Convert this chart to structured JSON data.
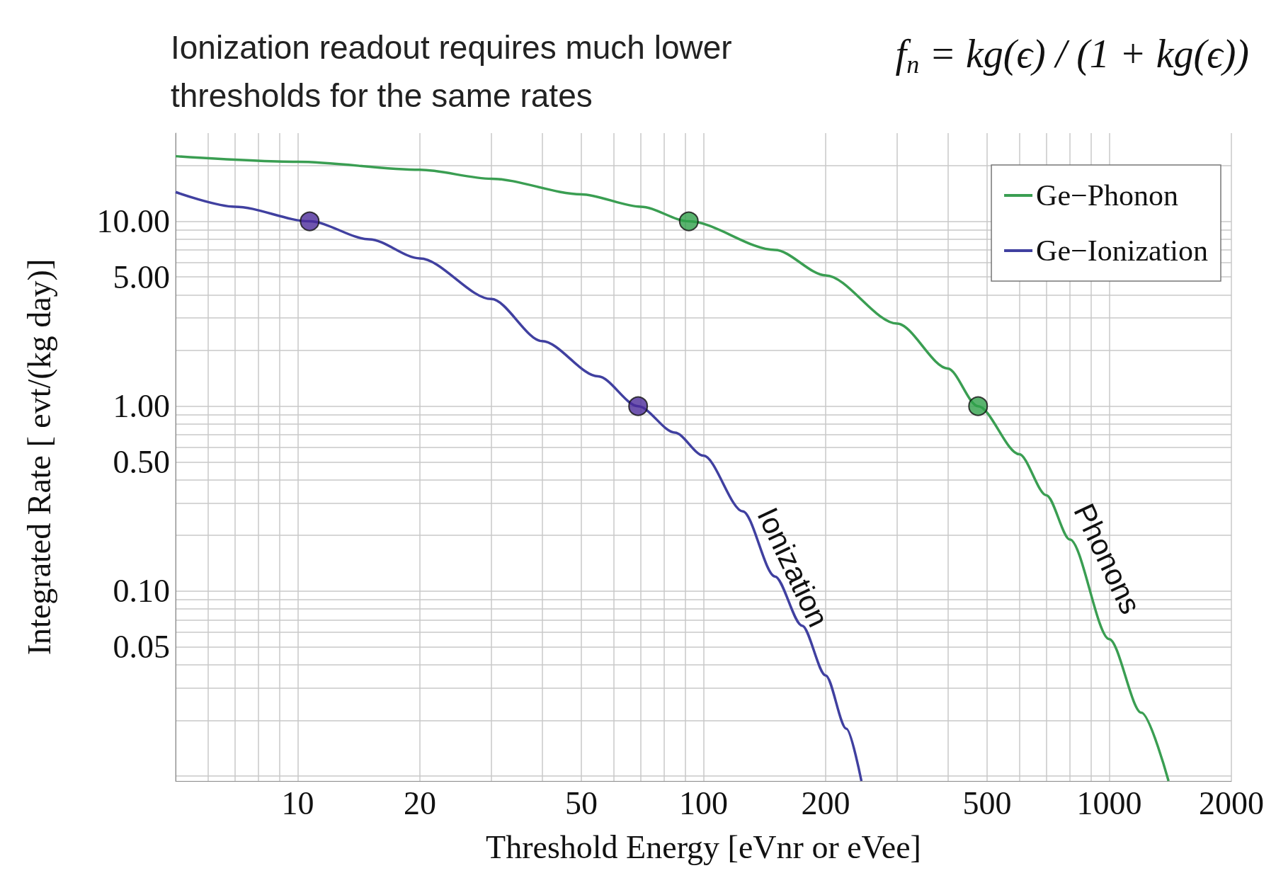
{
  "chart_data": {
    "type": "line",
    "title": "Ionization readout requires much lower thresholds for the same rates",
    "xlabel": "Threshold Energy [eVnr or eVee]",
    "ylabel": "Integrated Rate [ evt/(kg day)]",
    "log": "xy",
    "grid": true,
    "legend": "top right",
    "line_style": "solid",
    "xlim": [
      5,
      2000
    ],
    "ylim": [
      0.0094,
      30
    ],
    "xticks": [
      {
        "value": 5,
        "label": null
      },
      {
        "value": 6,
        "label": null
      },
      {
        "value": 7,
        "label": null
      },
      {
        "value": 8,
        "label": null
      },
      {
        "value": 9,
        "label": null
      },
      10,
      20,
      {
        "value": 30,
        "label": null
      },
      {
        "value": 40,
        "label": null
      },
      50,
      {
        "value": 60,
        "label": null
      },
      {
        "value": 70,
        "label": null
      },
      {
        "value": 80,
        "label": null
      },
      {
        "value": 90,
        "label": null
      },
      100,
      200,
      {
        "value": 300,
        "label": null
      },
      {
        "value": 400,
        "label": null
      },
      500,
      {
        "value": 600,
        "label": null
      },
      {
        "value": 700,
        "label": null
      },
      {
        "value": 800,
        "label": null
      },
      {
        "value": 900,
        "label": null
      },
      1000,
      2000
    ],
    "yticks": [
      {
        "value": 0.01,
        "label": null
      },
      {
        "value": 0.02,
        "label": null
      },
      {
        "value": 0.03,
        "label": null
      },
      {
        "value": 0.04,
        "label": null
      },
      {
        "value": 0.05,
        "label": "0.05"
      },
      {
        "value": 0.06,
        "label": null
      },
      {
        "value": 0.07,
        "label": null
      },
      {
        "value": 0.08,
        "label": null
      },
      {
        "value": 0.09,
        "label": null
      },
      {
        "value": 0.1,
        "label": "0.10"
      },
      {
        "value": 0.2,
        "label": null
      },
      {
        "value": 0.3,
        "label": null
      },
      {
        "value": 0.4,
        "label": null
      },
      {
        "value": 0.5,
        "label": "0.50"
      },
      {
        "value": 0.6,
        "label": null
      },
      {
        "value": 0.7,
        "label": null
      },
      {
        "value": 0.8,
        "label": null
      },
      {
        "value": 0.9,
        "label": null
      },
      {
        "value": 1,
        "label": "1.00"
      },
      {
        "value": 2,
        "label": null
      },
      {
        "value": 3,
        "label": null
      },
      {
        "value": 4,
        "label": null
      },
      {
        "value": 5,
        "label": "5.00"
      },
      {
        "value": 6,
        "label": null
      },
      {
        "value": 7,
        "label": null
      },
      {
        "value": 8,
        "label": null
      },
      {
        "value": 9,
        "label": null
      },
      {
        "value": 10,
        "label": "10.00"
      },
      {
        "value": 20,
        "label": null
      }
    ],
    "series": [
      {
        "name": "Ge−Phonon",
        "color": "#3a9e52",
        "x": [
          5,
          10,
          20,
          30,
          50,
          70,
          92,
          150,
          200,
          300,
          400,
          475,
          600,
          700,
          800,
          1000,
          1200,
          1400
        ],
        "values": [
          22.5,
          21,
          19,
          17,
          14,
          12,
          10,
          7,
          5.1,
          2.8,
          1.6,
          1.0,
          0.55,
          0.33,
          0.19,
          0.055,
          0.022,
          0.0094
        ]
      },
      {
        "name": "Ge−Ionization",
        "color": "#4040a0",
        "x": [
          5,
          7,
          10.7,
          15,
          20,
          30,
          40,
          55,
          69,
          85,
          100,
          125,
          150,
          175,
          200,
          225,
          245
        ],
        "values": [
          14.4,
          12,
          10,
          8,
          6.3,
          3.8,
          2.25,
          1.45,
          1.0,
          0.72,
          0.54,
          0.27,
          0.12,
          0.065,
          0.035,
          0.018,
          0.0094
        ]
      },
      {
        "type": "scatter",
        "marker": "circle",
        "color": "#4b2a9a",
        "x": [
          10.7,
          69
        ],
        "values": [
          10,
          1.0
        ]
      },
      {
        "type": "scatter",
        "marker": "circle",
        "color": "#2fa04a",
        "x": [
          92,
          475
        ],
        "values": [
          10,
          1.0
        ]
      }
    ],
    "annotations": [
      "f$_{n}$ = kg(ϵ) / (1 + kg(ϵ))",
      "Ionization",
      "Phonons"
    ]
  }
}
